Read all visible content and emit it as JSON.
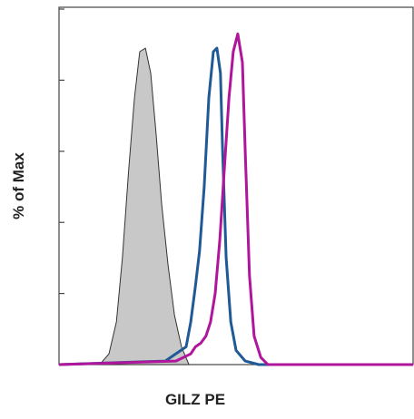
{
  "chart_data": {
    "type": "histogram-overlay",
    "xlabel": "GILZ PE",
    "ylabel": "% of Max",
    "xlim": [
      0,
      100
    ],
    "ylim": [
      0,
      100
    ],
    "yticks": [
      0,
      20,
      40,
      60,
      80,
      100
    ],
    "series": [
      {
        "color": "#c8c8c8",
        "fill": true,
        "x": [
          11.5,
          14.1,
          16.2,
          17.9,
          19.7,
          21.3,
          22.8,
          24.4,
          25.9,
          27.4,
          29.0,
          30.8,
          32.6,
          34.6,
          36.7
        ],
        "values": [
          0,
          3,
          12,
          30,
          55,
          75,
          88,
          89,
          82,
          65,
          45,
          28,
          14,
          5,
          0
        ]
      },
      {
        "color": "#1f5a96",
        "fill": false,
        "x": [
          0,
          30,
          35.9,
          37.2,
          38.5,
          39.7,
          41,
          42.3,
          43.6,
          44.6,
          45.6,
          46.2,
          47.2,
          48.5,
          50,
          52.6,
          56.4,
          100
        ],
        "values": [
          0,
          1,
          5,
          12,
          22,
          32,
          50,
          75,
          88,
          89,
          82,
          60,
          30,
          12,
          4,
          1,
          0,
          0
        ]
      },
      {
        "color": "#b0169b",
        "fill": false,
        "x": [
          0,
          33,
          37.2,
          38.5,
          40,
          41.5,
          42.8,
          44.1,
          45.4,
          46.7,
          48,
          49.2,
          50.5,
          51.8,
          52.6,
          53.8,
          55.1,
          57,
          59,
          100
        ],
        "values": [
          0,
          1,
          3,
          5,
          6,
          8,
          12,
          20,
          35,
          55,
          75,
          88,
          93,
          85,
          60,
          25,
          8,
          2,
          0,
          0
        ]
      }
    ]
  }
}
